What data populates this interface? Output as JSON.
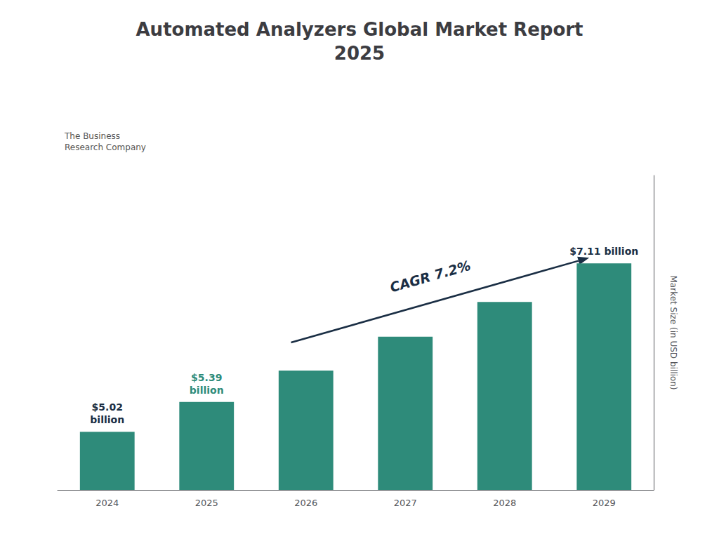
{
  "chart_data": {
    "type": "bar",
    "title": "Automated Analyzers Global Market Report\n2025",
    "categories": [
      "2024",
      "2025",
      "2026",
      "2027",
      "2028",
      "2029"
    ],
    "values": [
      5.02,
      5.39,
      5.78,
      6.2,
      6.63,
      7.11
    ],
    "color": "#2e8b7a",
    "ylabel": "Market Size (in USD billion)",
    "ylim": [
      4.3,
      8.2
    ],
    "yticks": [],
    "grid": false,
    "tick_labels": "x",
    "annotations": [
      {
        "text": "$5.02\nbillion",
        "category": "2024",
        "color": "#1a2e44"
      },
      {
        "text": "$5.39\nbillion",
        "category": "2025",
        "color": "#2e8b7a"
      },
      {
        "text": "$7.11 billion",
        "category": "2029",
        "color": "#1a2e44"
      },
      {
        "text": "CAGR 7.2%",
        "color": "#1a2e44"
      },
      {
        "text": "The Business\nResearch Company",
        "color": "#555555"
      }
    ]
  }
}
